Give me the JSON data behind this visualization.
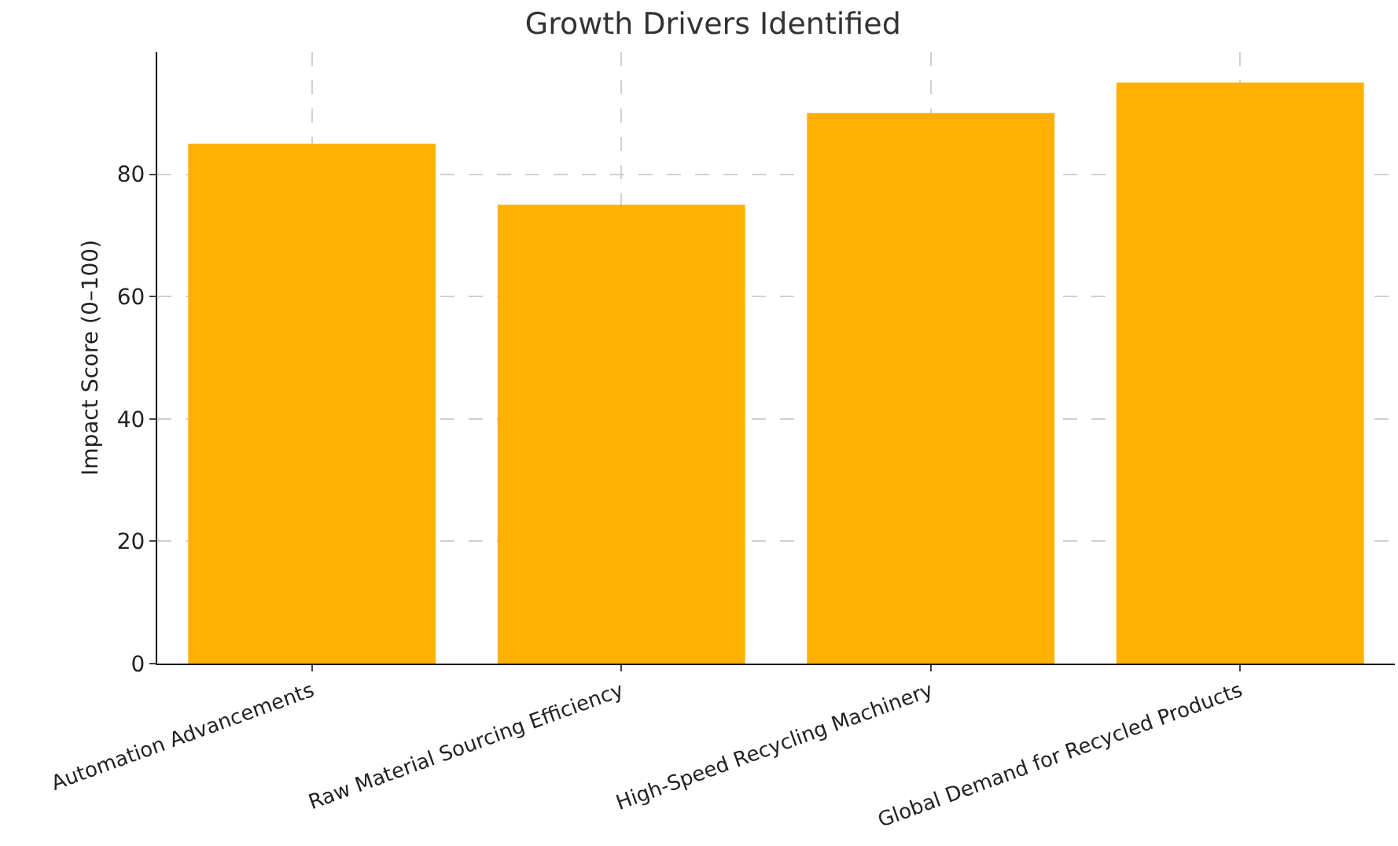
{
  "chart_data": {
    "type": "bar",
    "title": "Growth Drivers Identified",
    "ylabel": "Impact Score (0–100)",
    "categories": [
      "Automation Advancements",
      "Raw Material Sourcing Efficiency",
      "High-Speed Recycling Machinery",
      "Global Demand for Recycled Products"
    ],
    "values": [
      85,
      75,
      90,
      95
    ],
    "color": "#ffb000",
    "ylim": [
      0,
      100
    ],
    "yticks": [
      0,
      20,
      40,
      60,
      80
    ],
    "grid": true
  }
}
